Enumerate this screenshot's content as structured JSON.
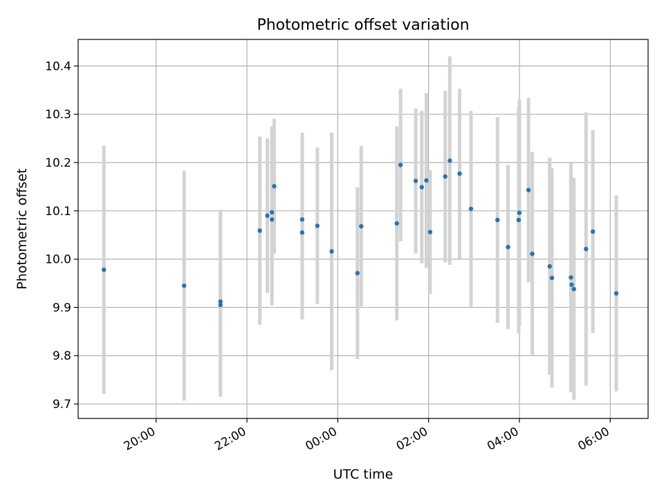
{
  "chart_data": {
    "type": "scatter",
    "title": "Photometric offset variation",
    "xlabel": "UTC time",
    "ylabel": "Photometric offset",
    "x_axis": {
      "type": "time",
      "base_date_hidden": true,
      "ticks": [
        "20:00",
        "22:00",
        "00:00",
        "02:00",
        "04:00",
        "06:00"
      ],
      "xlim": [
        "18:17",
        "06:50"
      ]
    },
    "y_axis": {
      "ylim": [
        9.67,
        10.455
      ],
      "ticks": [
        "9.7",
        "9.8",
        "9.9",
        "10.0",
        "10.1",
        "10.2",
        "10.3",
        "10.4"
      ]
    },
    "grid": true,
    "marker_color": "#1f77b4",
    "errorbar_color": "#d3d3d3",
    "series": [
      {
        "points": [
          {
            "t": "18:51",
            "y": 9.978,
            "err": 0.257
          },
          {
            "t": "20:37",
            "y": 9.945,
            "err": 0.238
          },
          {
            "t": "21:25",
            "y": 9.905,
            "err": 0.19
          },
          {
            "t": "21:25",
            "y": 9.912,
            "err": 0.19
          },
          {
            "t": "22:17",
            "y": 10.059,
            "err": 0.195
          },
          {
            "t": "22:27",
            "y": 10.09,
            "err": 0.16
          },
          {
            "t": "22:33",
            "y": 10.097,
            "err": 0.178
          },
          {
            "t": "22:33",
            "y": 10.082,
            "err": 0.178
          },
          {
            "t": "22:36",
            "y": 10.151,
            "err": 0.14
          },
          {
            "t": "23:13",
            "y": 10.055,
            "err": 0.18
          },
          {
            "t": "23:13",
            "y": 10.082,
            "err": 0.18
          },
          {
            "t": "23:33",
            "y": 10.069,
            "err": 0.162
          },
          {
            "t": "23:52",
            "y": 10.016,
            "err": 0.246
          },
          {
            "t": "00:26",
            "y": 9.971,
            "err": 0.178
          },
          {
            "t": "00:31",
            "y": 10.068,
            "err": 0.166
          },
          {
            "t": "01:18",
            "y": 10.074,
            "err": 0.201
          },
          {
            "t": "01:23",
            "y": 10.195,
            "err": 0.158
          },
          {
            "t": "01:43",
            "y": 10.162,
            "err": 0.15
          },
          {
            "t": "01:51",
            "y": 10.149,
            "err": 0.158
          },
          {
            "t": "01:57",
            "y": 10.163,
            "err": 0.181
          },
          {
            "t": "02:02",
            "y": 10.056,
            "err": 0.128
          },
          {
            "t": "02:22",
            "y": 10.171,
            "err": 0.178
          },
          {
            "t": "02:28",
            "y": 10.204,
            "err": 0.216
          },
          {
            "t": "02:41",
            "y": 10.177,
            "err": 0.176
          },
          {
            "t": "02:56",
            "y": 10.104,
            "err": 0.203
          },
          {
            "t": "03:31",
            "y": 10.081,
            "err": 0.213
          },
          {
            "t": "03:45",
            "y": 10.025,
            "err": 0.17
          },
          {
            "t": "03:59",
            "y": 10.081,
            "err": 0.235
          },
          {
            "t": "04:00",
            "y": 10.096,
            "err": 0.234
          },
          {
            "t": "04:12",
            "y": 10.143,
            "err": 0.191
          },
          {
            "t": "04:17",
            "y": 10.011,
            "err": 0.211
          },
          {
            "t": "04:40",
            "y": 9.985,
            "err": 0.225
          },
          {
            "t": "04:43",
            "y": 9.961,
            "err": 0.227
          },
          {
            "t": "05:08",
            "y": 9.962,
            "err": 0.238
          },
          {
            "t": "05:09",
            "y": 9.947,
            "err": 0.222
          },
          {
            "t": "05:12",
            "y": 9.938,
            "err": 0.23
          },
          {
            "t": "05:28",
            "y": 10.021,
            "err": 0.283
          },
          {
            "t": "05:37",
            "y": 10.057,
            "err": 0.21
          },
          {
            "t": "06:08",
            "y": 9.929,
            "err": 0.203
          }
        ]
      }
    ]
  }
}
